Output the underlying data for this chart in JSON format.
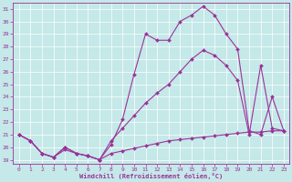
{
  "xlabel": "Windchill (Refroidissement éolien,°C)",
  "xlim": [
    -0.5,
    23.5
  ],
  "ylim": [
    18.7,
    31.5
  ],
  "yticks": [
    19,
    20,
    21,
    22,
    23,
    24,
    25,
    26,
    27,
    28,
    29,
    30,
    31
  ],
  "xticks": [
    0,
    1,
    2,
    3,
    4,
    5,
    6,
    7,
    8,
    9,
    10,
    11,
    12,
    13,
    14,
    15,
    16,
    17,
    18,
    19,
    20,
    21,
    22,
    23
  ],
  "bg_color": "#c5e8e8",
  "line_color": "#993399",
  "grid_color": "#b8d8d8",
  "line1_x": [
    0,
    1,
    2,
    3,
    4,
    5,
    6,
    7,
    8,
    9,
    10,
    11,
    12,
    13,
    14,
    15,
    16,
    17,
    18,
    19,
    20,
    21,
    22,
    23
  ],
  "line1_y": [
    21.0,
    20.5,
    19.5,
    19.2,
    20.0,
    19.5,
    19.3,
    19.0,
    20.2,
    22.2,
    25.8,
    29.0,
    28.5,
    28.5,
    30.0,
    30.5,
    31.2,
    30.5,
    29.0,
    27.8,
    21.3,
    21.0,
    24.0,
    21.3
  ],
  "line2_x": [
    0,
    1,
    2,
    3,
    4,
    5,
    6,
    7,
    8,
    9,
    10,
    11,
    12,
    13,
    14,
    15,
    16,
    17,
    18,
    19,
    20,
    21,
    22,
    23
  ],
  "line2_y": [
    21.0,
    20.5,
    19.5,
    19.2,
    20.0,
    19.5,
    19.3,
    19.0,
    20.5,
    21.5,
    22.5,
    23.5,
    24.3,
    25.0,
    26.0,
    27.0,
    27.7,
    27.3,
    26.5,
    25.3,
    21.0,
    26.5,
    21.5,
    21.3
  ],
  "line3_x": [
    0,
    1,
    2,
    3,
    4,
    5,
    6,
    7,
    8,
    9,
    10,
    11,
    12,
    13,
    14,
    15,
    16,
    17,
    18,
    19,
    20,
    21,
    22,
    23
  ],
  "line3_y": [
    21.0,
    20.5,
    19.5,
    19.2,
    19.8,
    19.5,
    19.3,
    19.0,
    19.5,
    19.7,
    19.9,
    20.1,
    20.3,
    20.5,
    20.6,
    20.7,
    20.8,
    20.9,
    21.0,
    21.1,
    21.2,
    21.2,
    21.3,
    21.3
  ]
}
